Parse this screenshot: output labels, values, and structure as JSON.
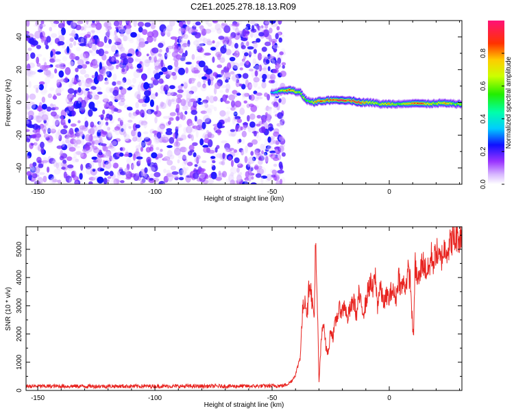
{
  "title": "C2E1.2025.278.18.13.R09",
  "chart_data": [
    {
      "type": "heatmap",
      "title": "C2E1.2025.278.18.13.R09",
      "xlabel": "Height of straight line (km)",
      "ylabel": "Frequency (Hz)",
      "xlim": [
        -155,
        31
      ],
      "ylim": [
        -50,
        50
      ],
      "x_ticks": [
        -150,
        -100,
        -50,
        0
      ],
      "x_tick_labels": [
        "-150",
        "-100",
        "-50",
        "0"
      ],
      "y_ticks": [
        -40,
        -20,
        0,
        20,
        40
      ],
      "y_tick_labels": [
        "-40",
        "-20",
        "0",
        "20",
        "40"
      ],
      "colorbar": {
        "label": "Normalized spectral amplitude",
        "range": [
          0,
          1
        ],
        "ticks": [
          0,
          0.2,
          0.4,
          0.6,
          0.8
        ],
        "tick_labels": [
          "0.0",
          "0.2",
          "0.4",
          "0.6",
          "0.8"
        ],
        "colormap": "hsv-rainbow"
      },
      "noise_region": {
        "x_range": [
          -155,
          -45
        ],
        "freq_range": [
          -50,
          50
        ],
        "amplitude_range": [
          0.0,
          0.25
        ]
      },
      "signal_ridge": {
        "x": [
          -50,
          -47,
          -44,
          -42,
          -40,
          -38,
          -36,
          -34,
          -32,
          -30,
          -27,
          -24,
          -20,
          -16,
          -12,
          -8,
          -4,
          0,
          4,
          8,
          12,
          16,
          20,
          24,
          28,
          31
        ],
        "frequency": [
          6,
          6.5,
          7.5,
          7.5,
          6.5,
          6,
          2,
          0.5,
          0,
          1,
          1,
          1.5,
          1.5,
          1,
          0,
          0,
          -1,
          -1,
          -1,
          -0.5,
          -0.5,
          -1,
          -0.5,
          -0.5,
          -1,
          -1
        ],
        "peak_amplitude": [
          0.3,
          0.5,
          0.8,
          0.85,
          0.7,
          0.6,
          0.65,
          0.55,
          0.75,
          0.8,
          0.85,
          0.9,
          0.95,
          0.9,
          0.9,
          0.7,
          0.6,
          0.75,
          0.55,
          0.7,
          0.85,
          0.8,
          0.65,
          0.75,
          0.6,
          0.6
        ]
      }
    },
    {
      "type": "line",
      "xlabel": "Height of straight line (km)",
      "ylabel": "SNR (10 * v/v)",
      "xlim": [
        -155,
        31
      ],
      "ylim": [
        0,
        5800
      ],
      "x_ticks": [
        -150,
        -100,
        -50,
        0
      ],
      "x_tick_labels": [
        "-150",
        "-100",
        "-50",
        "0"
      ],
      "y_ticks": [
        0,
        1000,
        2000,
        3000,
        4000,
        5000
      ],
      "y_tick_labels": [
        "0",
        "1000",
        "2000",
        "3000",
        "4000",
        "5000"
      ],
      "series": [
        {
          "name": "SNR",
          "color": "#e8231f",
          "x": [
            -155,
            -140,
            -120,
            -100,
            -80,
            -60,
            -45,
            -42,
            -40,
            -38,
            -37,
            -36,
            -35,
            -34,
            -33,
            -32,
            -31.5,
            -31,
            -30.5,
            -30,
            -29,
            -28,
            -27,
            -26,
            -25,
            -24,
            -23,
            -22,
            -21,
            -20,
            -19,
            -18,
            -17,
            -16,
            -15,
            -14,
            -13,
            -12,
            -11,
            -10,
            -9,
            -8,
            -7,
            -6,
            -5,
            -4,
            -3,
            -2,
            -1,
            0,
            1,
            2,
            3,
            4,
            5,
            6,
            7,
            8,
            9,
            10,
            10.5,
            11,
            12,
            13,
            14,
            15,
            16,
            17,
            18,
            19,
            20,
            21,
            22,
            23,
            24,
            25,
            26,
            27,
            28,
            29,
            30,
            31
          ],
          "y": [
            150,
            150,
            150,
            150,
            150,
            150,
            170,
            300,
            550,
            1200,
            2800,
            3300,
            2700,
            4000,
            3200,
            2500,
            5500,
            3600,
            2400,
            250,
            1800,
            2500,
            1500,
            1300,
            2200,
            1900,
            2400,
            2700,
            2900,
            2800,
            3100,
            2500,
            2800,
            3000,
            3200,
            2600,
            3400,
            3000,
            2800,
            3100,
            3600,
            3800,
            3500,
            4100,
            3000,
            3700,
            3300,
            3100,
            3400,
            3200,
            3600,
            3400,
            3300,
            4100,
            3600,
            3800,
            3700,
            4200,
            3900,
            2100,
            2200,
            4500,
            3900,
            4000,
            4600,
            4400,
            4200,
            4300,
            4800,
            4500,
            5000,
            4700,
            4600,
            4900,
            5100,
            5000,
            5200,
            5400,
            5300,
            5500,
            5400,
            5600
          ]
        }
      ]
    }
  ]
}
